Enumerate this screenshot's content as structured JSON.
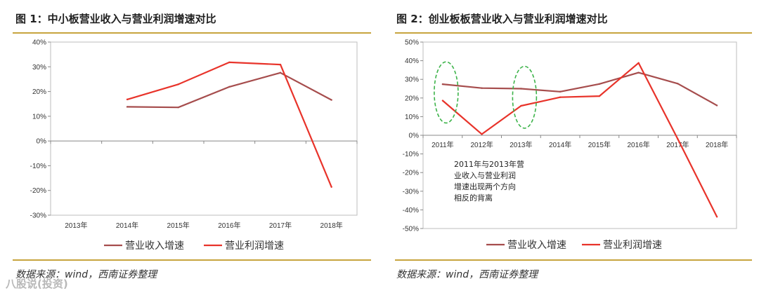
{
  "chart_data": [
    {
      "type": "line",
      "title": "图 1：中小板营业收入与营业利润增速对比",
      "categories": [
        "2013年",
        "2014年",
        "2015年",
        "2016年",
        "2017年",
        "2018年"
      ],
      "ylim": [
        -30,
        40
      ],
      "yticks": [
        -30,
        -20,
        -10,
        0,
        10,
        20,
        30,
        40
      ],
      "ytick_labels": [
        "-30%",
        "-20%",
        "-10%",
        "0%",
        "10%",
        "20%",
        "30%",
        "40%"
      ],
      "series": [
        {
          "name": "营业收入增速",
          "color": "#a64d4d",
          "values": [
            null,
            13.8,
            13.6,
            21.9,
            27.6,
            16.6
          ]
        },
        {
          "name": "营业利润增速",
          "color": "#e8332a",
          "values": [
            null,
            16.8,
            22.9,
            31.8,
            30.9,
            -18.6
          ]
        }
      ],
      "legend": "bottom",
      "source": "数据来源：wind，西南证券整理"
    },
    {
      "type": "line",
      "title": "图 2：创业板板营业收入与营业利润增速对比",
      "categories": [
        "2011年",
        "2012年",
        "2013年",
        "2014年",
        "2015年",
        "2016年",
        "2017年",
        "2018年"
      ],
      "ylim": [
        -50,
        50
      ],
      "yticks": [
        -50,
        -40,
        -30,
        -20,
        -10,
        0,
        10,
        20,
        30,
        40,
        50
      ],
      "ytick_labels": [
        "-50%",
        "-40%",
        "-30%",
        "-20%",
        "-10%",
        "0%",
        "10%",
        "20%",
        "30%",
        "40%",
        "50%"
      ],
      "series": [
        {
          "name": "营业收入增速",
          "color": "#a64d4d",
          "values": [
            27.4,
            25.3,
            25.0,
            23.4,
            27.5,
            33.6,
            27.7,
            16.0
          ]
        },
        {
          "name": "营业利润增速",
          "color": "#e8332a",
          "values": [
            18.6,
            0.6,
            15.8,
            20.4,
            21.0,
            38.8,
            -2.0,
            -43.7
          ]
        }
      ],
      "legend": "bottom",
      "annotation": [
        "2011年与2013年营",
        "业收入与营业利润",
        "增速出现两个方向",
        "相反的背离"
      ],
      "source": "数据来源：wind，西南证券整理"
    }
  ],
  "watermark": "八股说(投资)"
}
